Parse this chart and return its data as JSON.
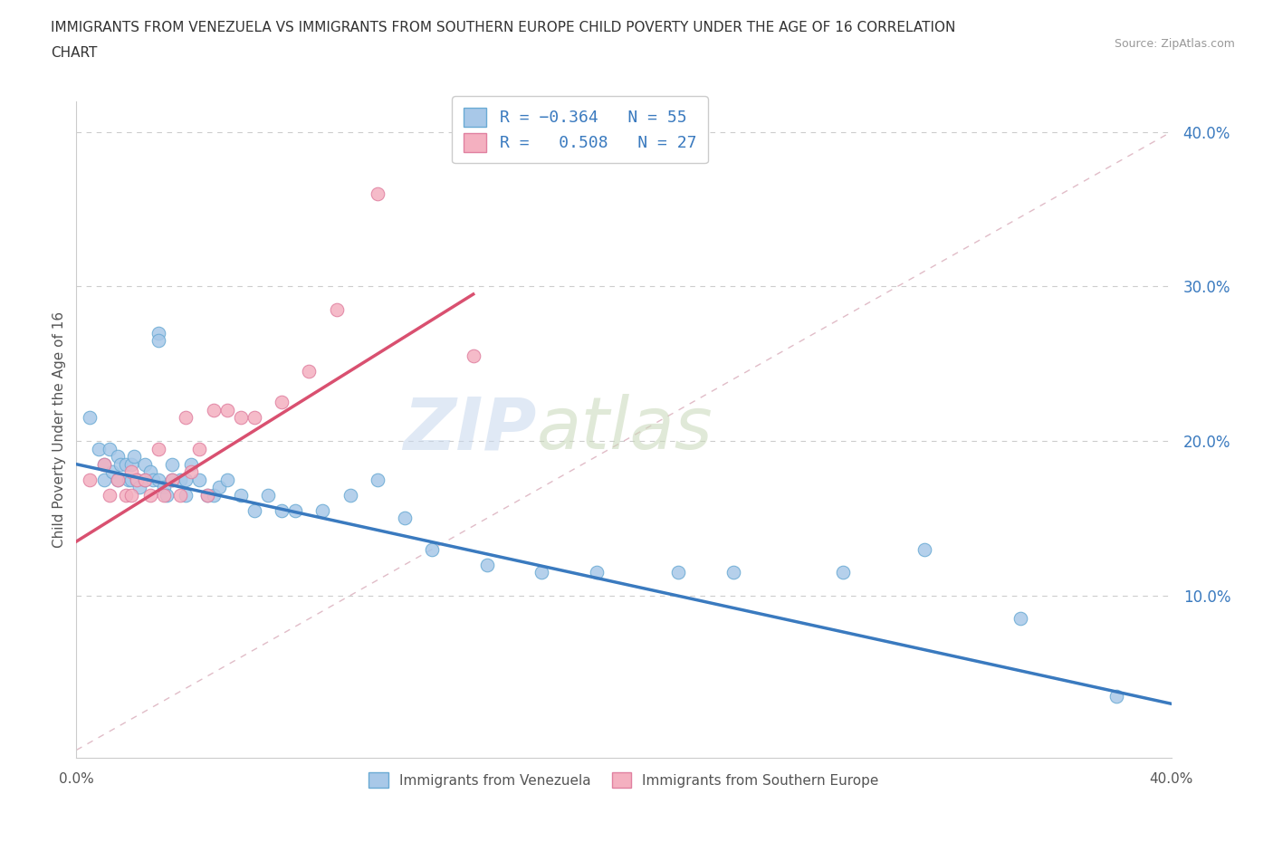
{
  "title_line1": "IMMIGRANTS FROM VENEZUELA VS IMMIGRANTS FROM SOUTHERN EUROPE CHILD POVERTY UNDER THE AGE OF 16 CORRELATION",
  "title_line2": "CHART",
  "source": "Source: ZipAtlas.com",
  "ylabel": "Child Poverty Under the Age of 16",
  "xlim": [
    0,
    0.4
  ],
  "ylim": [
    -0.005,
    0.42
  ],
  "yticks": [
    0.1,
    0.2,
    0.3,
    0.4
  ],
  "ytick_labels": [
    "10.0%",
    "20.0%",
    "30.0%",
    "40.0%"
  ],
  "xticks": [
    0.0,
    0.05,
    0.1,
    0.15,
    0.2,
    0.25,
    0.3,
    0.35,
    0.4
  ],
  "blue_color": "#a8c8e8",
  "pink_color": "#f4b0c0",
  "blue_line_color": "#3a7abf",
  "pink_line_color": "#d95070",
  "blue_dot_edge": "#6aaad4",
  "pink_dot_edge": "#e080a0",
  "ref_line_color": "#d4a0b0",
  "watermark_zip": "ZIP",
  "watermark_atlas": "atlas",
  "venezuela_x": [
    0.005,
    0.008,
    0.01,
    0.01,
    0.012,
    0.013,
    0.015,
    0.015,
    0.016,
    0.018,
    0.019,
    0.02,
    0.02,
    0.021,
    0.022,
    0.023,
    0.025,
    0.025,
    0.027,
    0.028,
    0.03,
    0.03,
    0.03,
    0.032,
    0.033,
    0.035,
    0.035,
    0.038,
    0.04,
    0.04,
    0.042,
    0.045,
    0.048,
    0.05,
    0.052,
    0.055,
    0.06,
    0.065,
    0.07,
    0.075,
    0.08,
    0.09,
    0.1,
    0.11,
    0.12,
    0.13,
    0.15,
    0.17,
    0.19,
    0.22,
    0.24,
    0.28,
    0.31,
    0.345,
    0.38
  ],
  "venezuela_y": [
    0.215,
    0.195,
    0.185,
    0.175,
    0.195,
    0.18,
    0.19,
    0.175,
    0.185,
    0.185,
    0.175,
    0.185,
    0.175,
    0.19,
    0.175,
    0.17,
    0.185,
    0.175,
    0.18,
    0.175,
    0.27,
    0.265,
    0.175,
    0.17,
    0.165,
    0.185,
    0.175,
    0.175,
    0.175,
    0.165,
    0.185,
    0.175,
    0.165,
    0.165,
    0.17,
    0.175,
    0.165,
    0.155,
    0.165,
    0.155,
    0.155,
    0.155,
    0.165,
    0.175,
    0.15,
    0.13,
    0.12,
    0.115,
    0.115,
    0.115,
    0.115,
    0.115,
    0.13,
    0.085,
    0.035
  ],
  "s_europe_x": [
    0.005,
    0.01,
    0.012,
    0.015,
    0.018,
    0.02,
    0.02,
    0.022,
    0.025,
    0.027,
    0.03,
    0.032,
    0.035,
    0.038,
    0.04,
    0.042,
    0.045,
    0.048,
    0.05,
    0.055,
    0.06,
    0.065,
    0.075,
    0.085,
    0.095,
    0.11,
    0.145
  ],
  "s_europe_y": [
    0.175,
    0.185,
    0.165,
    0.175,
    0.165,
    0.18,
    0.165,
    0.175,
    0.175,
    0.165,
    0.195,
    0.165,
    0.175,
    0.165,
    0.215,
    0.18,
    0.195,
    0.165,
    0.22,
    0.22,
    0.215,
    0.215,
    0.225,
    0.245,
    0.285,
    0.36,
    0.255
  ],
  "blue_trend_x": [
    0.0,
    0.4
  ],
  "blue_trend_y": [
    0.185,
    0.03
  ],
  "pink_trend_x": [
    0.0,
    0.145
  ],
  "pink_trend_y": [
    0.135,
    0.295
  ],
  "ref_line_x": [
    0.0,
    0.4
  ],
  "ref_line_y": [
    0.0,
    0.4
  ]
}
